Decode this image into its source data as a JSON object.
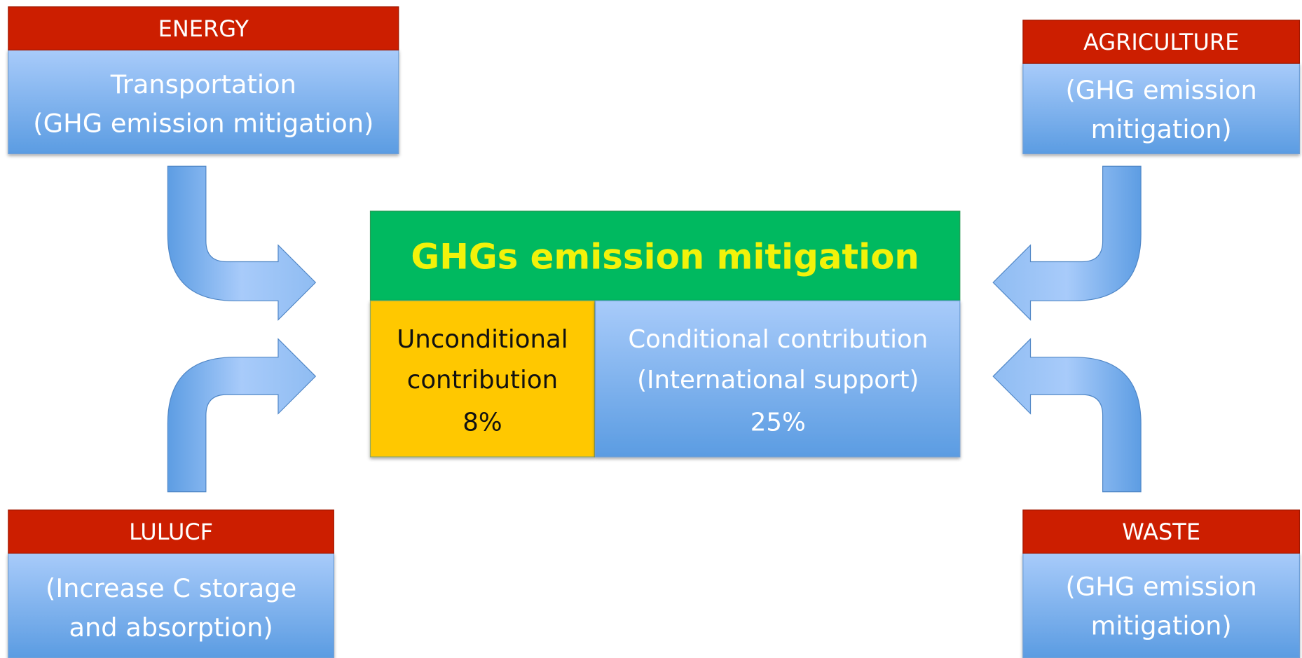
{
  "sectors": [
    {
      "header": "ENERGY",
      "lines": [
        "Transportation",
        "(GHG emission mitigation)"
      ]
    },
    {
      "header": "AGRICULTURE",
      "lines": [
        "(GHG emission",
        "mitigation)"
      ]
    },
    {
      "header": "LULUCF",
      "lines": [
        "(Increase C storage",
        "and absorption)"
      ]
    },
    {
      "header": "WASTE",
      "lines": [
        "(GHG emission",
        "mitigation)"
      ]
    }
  ],
  "center": {
    "title": "GHGs emission mitigation",
    "unconditional": [
      "Unconditional",
      "contribution",
      "8%"
    ],
    "conditional": [
      "Conditional contribution",
      "(International support)",
      "25%"
    ]
  }
}
